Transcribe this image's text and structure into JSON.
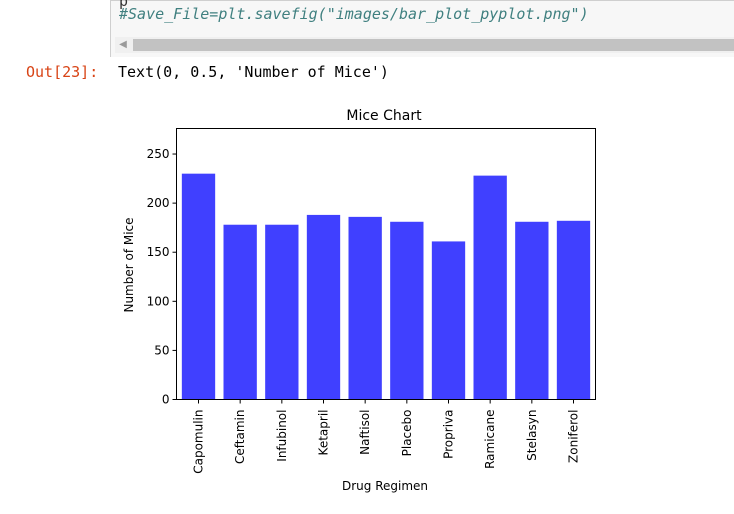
{
  "code_cell": {
    "partial_line": "p",
    "comment_line": "#Save_File=plt.savefig(\"images/bar_plot_pyplot.png\")"
  },
  "output": {
    "prompt": "Out[23]:",
    "text": "Text(0, 0.5, 'Number of Mice')"
  },
  "chart_data": {
    "type": "bar",
    "title": "Mice Chart",
    "xlabel": "Drug Regimen",
    "ylabel": "Number of Mice",
    "categories": [
      "Capomulin",
      "Ceftamin",
      "Infubinol",
      "Ketapril",
      "Naftisol",
      "Placebo",
      "Propriva",
      "Ramicane",
      "Stelasyn",
      "Zoniferol"
    ],
    "values": [
      230,
      178,
      178,
      188,
      186,
      181,
      161,
      228,
      181,
      182
    ],
    "ylim": [
      0,
      276
    ],
    "yticks": [
      0,
      50,
      100,
      150,
      200,
      250
    ],
    "bar_color": "#4040ff",
    "grid": false,
    "legend": "none"
  }
}
